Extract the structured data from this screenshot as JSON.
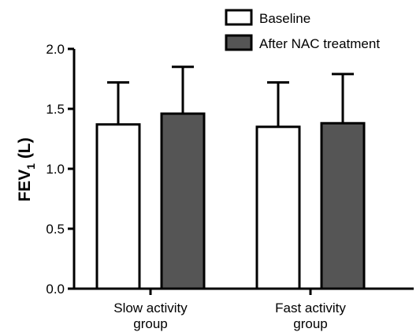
{
  "chart_data": {
    "type": "bar",
    "title": "",
    "xlabel": "",
    "ylabel": {
      "main": "FEV",
      "subscript": "1",
      "suffix": " (L)"
    },
    "ylim": [
      0,
      2.0
    ],
    "yticks": [
      "0.0",
      "0.5",
      "1.0",
      "1.5",
      "2.0"
    ],
    "categories": [
      [
        "Slow activity",
        "group"
      ],
      [
        "Fast activity",
        "group"
      ]
    ],
    "series": [
      {
        "name": "Baseline",
        "color": "#ffffff",
        "values": [
          1.37,
          1.35
        ],
        "error": [
          0.35,
          0.37
        ]
      },
      {
        "name": "After NAC treatment",
        "color": "#555555",
        "values": [
          1.46,
          1.38
        ],
        "error": [
          0.39,
          0.41
        ]
      }
    ],
    "grid": false,
    "legend_position": "top-right",
    "error_bars": "upper"
  }
}
